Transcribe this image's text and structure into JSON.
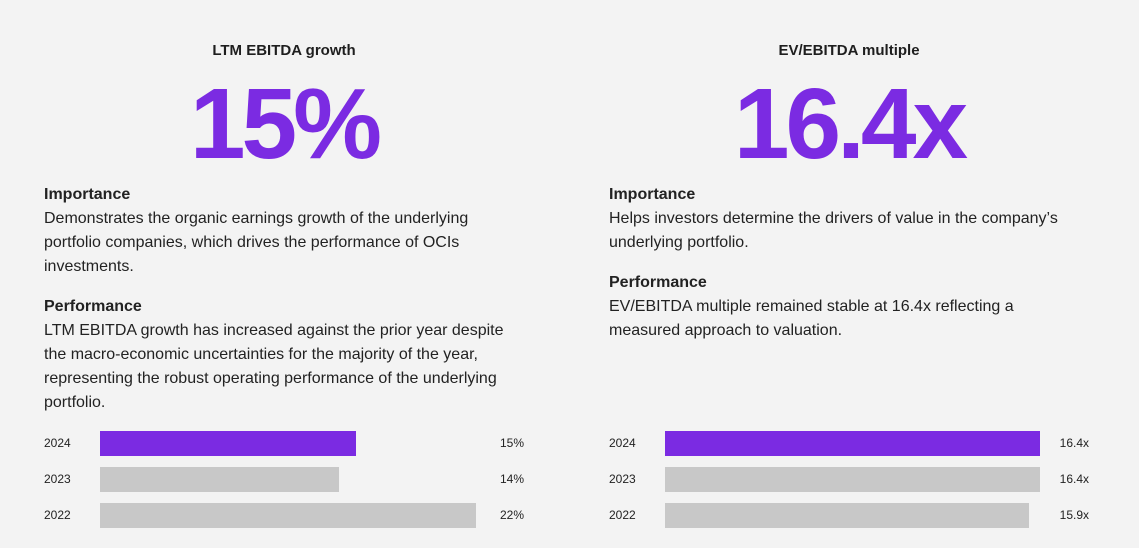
{
  "colors": {
    "accent": "#7b2be2",
    "muted": "#c8c8c8",
    "background": "#f3f3f3"
  },
  "left": {
    "title": "LTM EBITDA growth",
    "value": "15%",
    "importance_heading": "Importance",
    "importance_text": "Demonstrates the organic earnings growth of the underlying portfolio companies, which drives the performance of OCIs investments.",
    "performance_heading": "Performance",
    "performance_text": "LTM EBITDA growth has increased against the prior year despite the macro-economic uncertainties for the majority of the year, representing the robust operating performance of the underlying portfolio."
  },
  "right": {
    "title": "EV/EBITDA multiple",
    "value": "16.4x",
    "importance_heading": "Importance",
    "importance_text": "Helps investors determine the drivers of value in the company’s underlying portfolio.",
    "performance_heading": "Performance",
    "performance_text": "EV/EBITDA multiple remained stable at 16.4x reflecting a measured approach to valuation."
  },
  "chart_data": [
    {
      "type": "bar",
      "orientation": "horizontal",
      "categories": [
        "2024",
        "2023",
        "2022"
      ],
      "values": [
        15,
        14,
        22
      ],
      "labels": [
        "15%",
        "14%",
        "22%"
      ],
      "highlight": "2024",
      "xlim": [
        0,
        22
      ]
    },
    {
      "type": "bar",
      "orientation": "horizontal",
      "categories": [
        "2024",
        "2023",
        "2022"
      ],
      "values": [
        16.4,
        16.4,
        15.9
      ],
      "labels": [
        "16.4x",
        "16.4x",
        "15.9x"
      ],
      "highlight": "2024",
      "xlim": [
        0,
        16.4
      ]
    }
  ]
}
